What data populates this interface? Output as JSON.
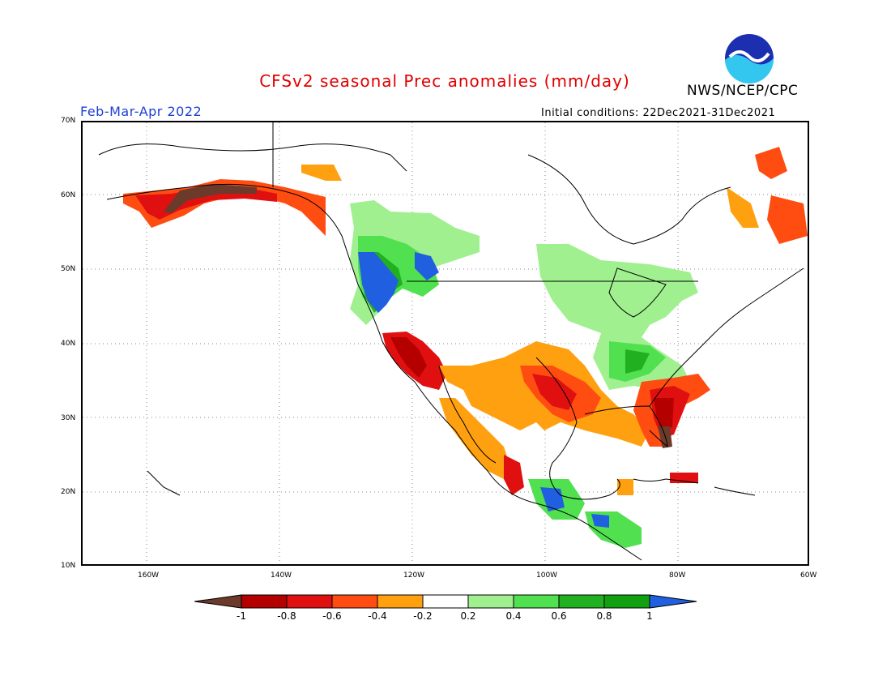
{
  "title": "CFSv2 seasonal Prec anomalies (mm/day)",
  "agency": "NWS/NCEP/CPC",
  "logo_text": "NOAA",
  "season": "Feb-Mar-Apr 2022",
  "initial_conditions": "Initial conditions: 22Dec2021-31Dec2021",
  "lat_ticks": [
    "70N",
    "60N",
    "50N",
    "40N",
    "30N",
    "20N",
    "10N"
  ],
  "lon_ticks": [
    "160W",
    "140W",
    "120W",
    "100W",
    "80W",
    "60W"
  ],
  "colorbar": {
    "labels": [
      "-1",
      "-0.8",
      "-0.6",
      "-0.4",
      "-0.2",
      "0.2",
      "0.4",
      "0.6",
      "0.8",
      "1"
    ],
    "colors": [
      "#6b3a2a",
      "#b50000",
      "#e01010",
      "#ff4d12",
      "#ffa010",
      "#ffffff",
      "#a0f090",
      "#50e050",
      "#20b020",
      "#10a010",
      "#2060e0"
    ]
  },
  "colors": {
    "dry_extreme": "#6b3a2a",
    "dry_strong": "#b50000",
    "dry_moderate": "#e01010",
    "dry_light": "#ff4d12",
    "dry_weak": "#ffa010",
    "wet_weak": "#a0f090",
    "wet_light": "#50e050",
    "wet_moderate": "#20b020",
    "wet_strong": "#10a010",
    "wet_extreme": "#2060e0"
  }
}
